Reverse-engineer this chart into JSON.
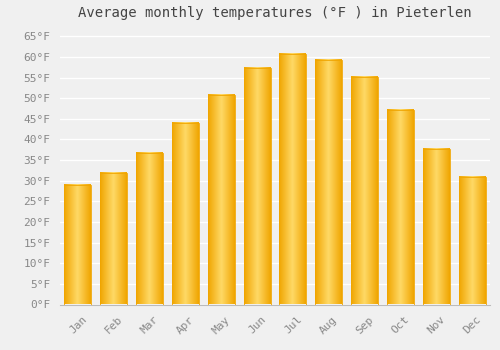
{
  "title": "Average monthly temperatures (°F ) in Pieterlen",
  "months": [
    "Jan",
    "Feb",
    "Mar",
    "Apr",
    "May",
    "Jun",
    "Jul",
    "Aug",
    "Sep",
    "Oct",
    "Nov",
    "Dec"
  ],
  "values": [
    28.9,
    31.8,
    36.7,
    44.1,
    50.7,
    57.2,
    60.8,
    59.2,
    55.1,
    47.1,
    37.6,
    30.9
  ],
  "bar_color_center": "#FFD966",
  "bar_color_edge": "#F0A500",
  "background_color": "#f0f0f0",
  "grid_color": "#ffffff",
  "ylim": [
    0,
    67
  ],
  "yticks": [
    0,
    5,
    10,
    15,
    20,
    25,
    30,
    35,
    40,
    45,
    50,
    55,
    60,
    65
  ],
  "ytick_labels": [
    "0°F",
    "5°F",
    "10°F",
    "15°F",
    "20°F",
    "25°F",
    "30°F",
    "35°F",
    "40°F",
    "45°F",
    "50°F",
    "55°F",
    "60°F",
    "65°F"
  ],
  "title_fontsize": 10,
  "tick_fontsize": 8,
  "tick_color": "#888888",
  "font_family": "monospace",
  "bar_width": 0.75
}
